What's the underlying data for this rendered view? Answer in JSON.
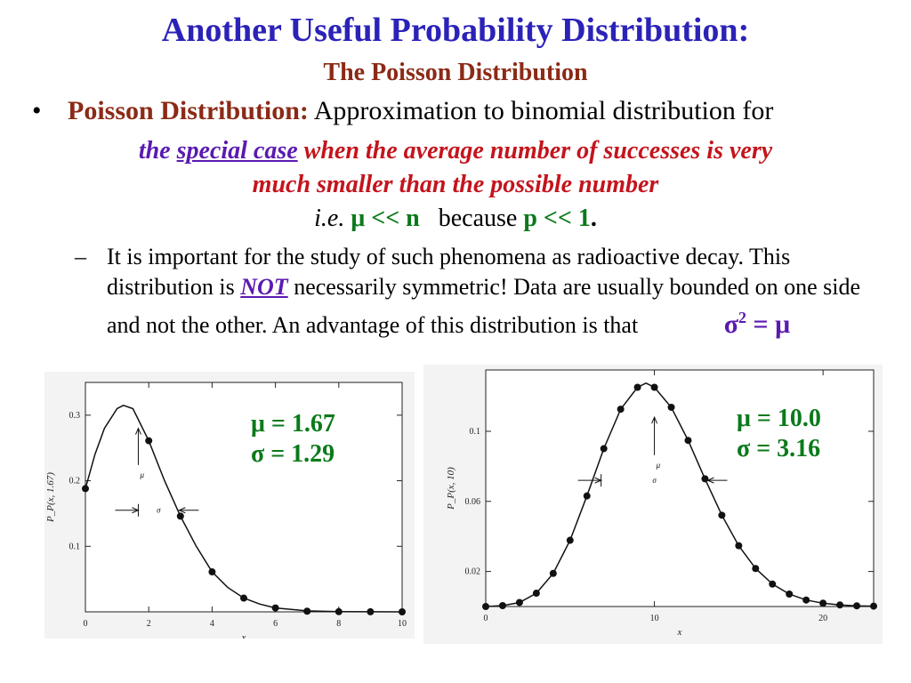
{
  "title": "Another Useful Probability Distribution:",
  "subtitle": "The Poisson Distribution",
  "bullet": {
    "marker": "•",
    "term": "Poisson Distribution",
    "colon": ":",
    "text": " Approximation to binomial distribution for"
  },
  "special": {
    "the": "the",
    "special_case": "special case",
    "rest": "when the average number of successes is very",
    "line2": "much smaller than the possible number"
  },
  "ie_line": {
    "ie": "i.e.",
    "mu_n": "μ << n",
    "because": "because",
    "p1": "p << 1",
    "period": "."
  },
  "sub_bullet": {
    "dash": "–",
    "text1": "It is important for the study of such phenomena as radioactive decay. This distribution is ",
    "not": "NOT",
    "text2": " necessarily symmetric! Data are usually bounded on one side and not the other. An advantage of this distribution is that",
    "sigma_eq_base": "σ",
    "sigma_eq_sup": "2",
    "sigma_eq_rest": " = μ"
  },
  "colors": {
    "title": "#2b22b8",
    "subtitle": "#8b2a16",
    "purple": "#5a1ab0",
    "red": "#c4141c",
    "green": "#0a7a1a"
  },
  "chart_data": [
    {
      "type": "scatter",
      "xlabel": "x",
      "ylabel": "P_P(x, 1.67)",
      "xlim": [
        0,
        10
      ],
      "ylim": [
        0,
        0.35
      ],
      "x_ticks": [
        "0",
        "2",
        "4",
        "6",
        "8",
        "10"
      ],
      "y_ticks": [
        "0.1",
        "0.2",
        "0.3"
      ],
      "mu": 1.67,
      "x": [
        0,
        2,
        3,
        4,
        5,
        6,
        7,
        8,
        9,
        10
      ],
      "y": [
        0.188,
        0.261,
        0.146,
        0.061,
        0.021,
        0.006,
        0.001,
        0.0003,
        0.0001,
        0.0
      ],
      "curve": [
        [
          0,
          0.188
        ],
        [
          0.3,
          0.24
        ],
        [
          0.6,
          0.28
        ],
        [
          1.0,
          0.31
        ],
        [
          1.2,
          0.315
        ],
        [
          1.5,
          0.31
        ],
        [
          2.0,
          0.261
        ],
        [
          2.5,
          0.2
        ],
        [
          3.0,
          0.146
        ],
        [
          3.5,
          0.1
        ],
        [
          4.0,
          0.061
        ],
        [
          4.5,
          0.037
        ],
        [
          5.0,
          0.021
        ],
        [
          5.5,
          0.012
        ],
        [
          6.0,
          0.006
        ],
        [
          7.0,
          0.0015
        ],
        [
          8.0,
          0.0003
        ],
        [
          10.0,
          0.0
        ]
      ],
      "annotations": {
        "mu_label": "μ",
        "sigma_label": "σ",
        "mu_arrow_x": 1.67,
        "sigma_left": 1.67,
        "sigma_right": 2.96,
        "sigma_y": 0.155
      },
      "legend": {
        "mu_text": "μ = 1.67",
        "sigma_text": "σ = 1.29"
      }
    },
    {
      "type": "scatter",
      "xlabel": "x",
      "ylabel": "P_P(x, 10)",
      "xlim": [
        0,
        23
      ],
      "ylim": [
        0,
        0.135
      ],
      "x_ticks": [
        "0",
        "10",
        "20"
      ],
      "y_ticks": [
        "0.02",
        "0.06",
        "0.1"
      ],
      "mu": 10.0,
      "x": [
        0,
        1,
        2,
        3,
        4,
        5,
        6,
        7,
        8,
        9,
        10,
        11,
        12,
        13,
        14,
        15,
        16,
        17,
        18,
        19,
        20,
        21,
        22,
        23
      ],
      "y": [
        0.0,
        0.0005,
        0.0023,
        0.0076,
        0.0189,
        0.0378,
        0.0631,
        0.0901,
        0.1126,
        0.1251,
        0.1251,
        0.1137,
        0.0948,
        0.0729,
        0.0521,
        0.0347,
        0.0217,
        0.0128,
        0.0071,
        0.0037,
        0.0019,
        0.0009,
        0.0004,
        0.0002
      ],
      "curve": [
        [
          0,
          0.0
        ],
        [
          1,
          0.0005
        ],
        [
          2,
          0.0023
        ],
        [
          3,
          0.0076
        ],
        [
          4,
          0.0189
        ],
        [
          5,
          0.0378
        ],
        [
          6,
          0.0631
        ],
        [
          7,
          0.0901
        ],
        [
          8,
          0.1126
        ],
        [
          9,
          0.1251
        ],
        [
          9.5,
          0.1275
        ],
        [
          10,
          0.1251
        ],
        [
          11,
          0.1137
        ],
        [
          12,
          0.0948
        ],
        [
          13,
          0.0729
        ],
        [
          14,
          0.0521
        ],
        [
          15,
          0.0347
        ],
        [
          16,
          0.0217
        ],
        [
          17,
          0.0128
        ],
        [
          18,
          0.0071
        ],
        [
          19,
          0.0037
        ],
        [
          20,
          0.0019
        ],
        [
          21,
          0.0009
        ],
        [
          22,
          0.0004
        ],
        [
          23,
          0.0002
        ]
      ],
      "annotations": {
        "mu_label": "μ",
        "sigma_label": "σ",
        "mu_arrow_x": 10.0,
        "sigma_left": 6.84,
        "sigma_right": 13.16,
        "sigma_y": 0.072
      },
      "legend": {
        "mu_text": "μ = 10.0",
        "sigma_text": "σ = 3.16"
      }
    }
  ]
}
